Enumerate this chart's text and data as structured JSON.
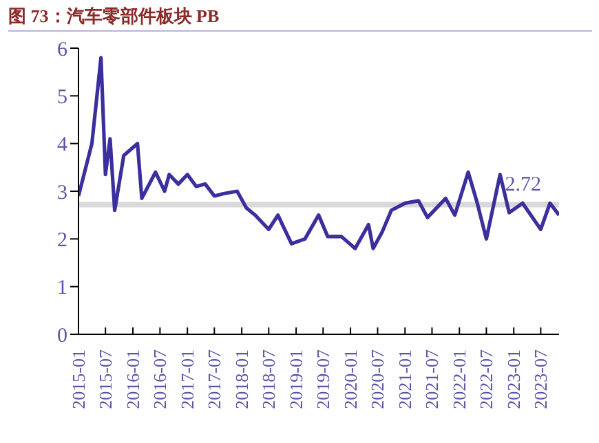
{
  "chart_data": {
    "type": "line",
    "title": "图 73：汽车零部件板块 PB",
    "x": [
      "2015-01",
      "2015-04",
      "2015-06",
      "2015-07",
      "2015-08",
      "2015-09",
      "2015-11",
      "2016-02",
      "2016-03",
      "2016-06",
      "2016-08",
      "2016-09",
      "2016-11",
      "2017-01",
      "2017-03",
      "2017-05",
      "2017-07",
      "2017-09",
      "2017-12",
      "2018-02",
      "2018-04",
      "2018-07",
      "2018-09",
      "2018-10",
      "2018-12",
      "2019-03",
      "2019-06",
      "2019-08",
      "2019-11",
      "2020-02",
      "2020-05",
      "2020-06",
      "2020-08",
      "2020-10",
      "2021-01",
      "2021-04",
      "2021-06",
      "2021-10",
      "2021-12",
      "2022-03",
      "2022-05",
      "2022-07",
      "2022-10",
      "2022-12",
      "2023-03",
      "2023-07",
      "2023-09",
      "2023-11"
    ],
    "series": [
      {
        "color": "#3b2f9e",
        "values": [
          2.9,
          4.0,
          5.8,
          3.35,
          4.1,
          2.6,
          3.75,
          4.0,
          2.85,
          3.4,
          3.0,
          3.35,
          3.15,
          3.35,
          3.1,
          3.15,
          2.9,
          2.95,
          3.0,
          2.65,
          2.5,
          2.2,
          2.5,
          2.3,
          1.9,
          2.0,
          2.5,
          2.05,
          2.05,
          1.8,
          2.3,
          1.8,
          2.15,
          2.6,
          2.75,
          2.8,
          2.45,
          2.85,
          2.5,
          3.4,
          2.75,
          2.0,
          3.35,
          2.55,
          2.75,
          2.2,
          2.75,
          2.5
        ]
      }
    ],
    "ylim": [
      0,
      6
    ],
    "yticks": [
      0,
      1,
      2,
      3,
      4,
      5,
      6
    ],
    "xlim": [
      "2015-01",
      "2023-11"
    ],
    "xticks": [
      "2015-01",
      "2015-07",
      "2016-01",
      "2016-07",
      "2017-01",
      "2017-07",
      "2018-01",
      "2018-07",
      "2019-01",
      "2019-07",
      "2020-01",
      "2020-07",
      "2021-01",
      "2021-07",
      "2022-01",
      "2022-07",
      "2023-01",
      "2023-07"
    ],
    "ref_lines": [
      {
        "axis": "y",
        "value": 2.72,
        "label": "2.72",
        "color": "#d9d9d9"
      }
    ],
    "marker": "none",
    "line_style": "solid"
  }
}
